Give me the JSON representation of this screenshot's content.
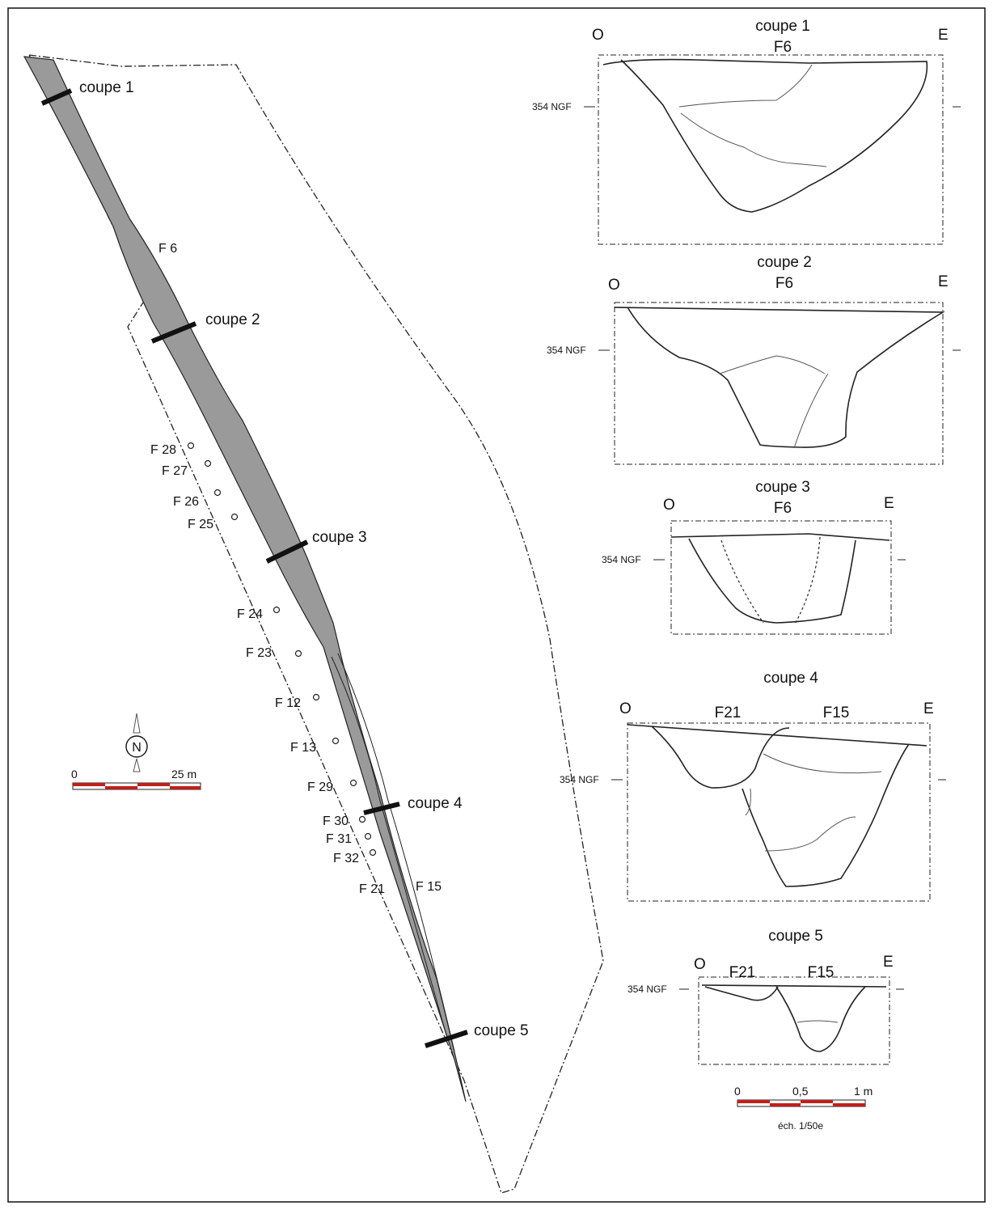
{
  "plan": {
    "sections": [
      "coupe 1",
      "coupe 2",
      "coupe 3",
      "coupe 4",
      "coupe 5"
    ],
    "features": {
      "f6": "F 6",
      "f28": "F 28",
      "f27": "F 27",
      "f26": "F 26",
      "f25": "F 25",
      "f24": "F 24",
      "f23": "F 23",
      "f12": "F 12",
      "f13": "F 13",
      "f29": "F 29",
      "f30": "F 30",
      "f31": "F 31",
      "f32": "F 32",
      "f21": "F 21",
      "f15": "F 15"
    },
    "north": "N",
    "scale": {
      "start": "0",
      "end": "25 m"
    }
  },
  "profiles": [
    {
      "title": "coupe 1",
      "west": "O",
      "east": "E",
      "datum": "354 NGF",
      "features": [
        "F6"
      ]
    },
    {
      "title": "coupe 2",
      "west": "O",
      "east": "E",
      "datum": "354 NGF",
      "features": [
        "F6"
      ]
    },
    {
      "title": "coupe 3",
      "west": "O",
      "east": "E",
      "datum": "354 NGF",
      "features": [
        "F6"
      ]
    },
    {
      "title": "coupe 4",
      "west": "O",
      "east": "E",
      "datum": "354 NGF",
      "features": [
        "F21",
        "F15"
      ]
    },
    {
      "title": "coupe 5",
      "west": "O",
      "east": "E",
      "datum": "354 NGF",
      "features": [
        "F21",
        "F15"
      ]
    }
  ],
  "profile_scale": {
    "start": "0",
    "mid": "0,5",
    "end": "1 m",
    "caption": "éch. 1/50e"
  },
  "colors": {
    "ditch_fill": "#9a9a9a",
    "scale_red": "#c0201c",
    "line": "#1a1a1a"
  }
}
